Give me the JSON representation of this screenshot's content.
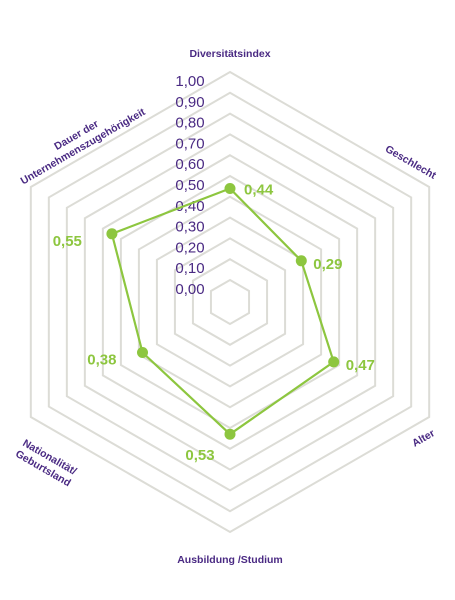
{
  "chart_data": {
    "type": "radar",
    "axes": [
      "Diversitätsindex",
      "Geschlecht",
      "Alter",
      "Ausbildung /Studium",
      "Nationalität/ Geburtsland",
      "Dauer der Unternehmenszugehörigkeit"
    ],
    "values": [
      0.44,
      0.29,
      0.47,
      0.53,
      0.38,
      0.55
    ],
    "value_labels": [
      "0,44",
      "0,29",
      "0,47",
      "0,53",
      "0,38",
      "0,55"
    ],
    "ticks": [
      "0,00",
      "0,10",
      "0,20",
      "0,30",
      "0,40",
      "0,50",
      "0,60",
      "0,70",
      "0,80",
      "0,90",
      "1,00"
    ],
    "range": [
      0,
      1
    ],
    "grid": true,
    "colors": {
      "series": "#8dc63f",
      "text": "#4a2a83",
      "grid": "#dcdcd6"
    }
  },
  "labels": {
    "axis_0": "Diversitätsindex",
    "axis_1": "Geschlecht",
    "axis_2": "Alter",
    "axis_3": "Ausbildung /Studium",
    "axis_4_line1": "Nationalität/",
    "axis_4_line2": "Geburtsland",
    "axis_5_line1": "Dauer der",
    "axis_5_line2": "Unternehmenszugehörigkeit"
  }
}
